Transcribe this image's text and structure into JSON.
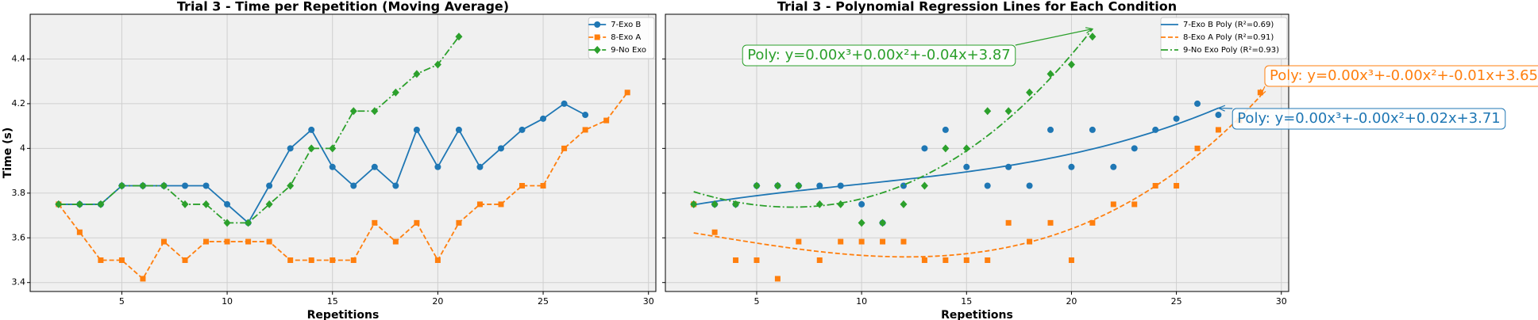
{
  "chart_data": [
    {
      "type": "line",
      "title": "Trial 3 - Time per Repetition (Moving Average)",
      "xlabel": "Repetitions",
      "ylabel": "Time (s)",
      "xlim": [
        0.65,
        30.35
      ],
      "ylim": [
        3.36,
        4.6
      ],
      "xticks": [
        5,
        10,
        15,
        20,
        25,
        30
      ],
      "yticks": [
        3.4,
        3.6,
        3.8,
        4.0,
        4.2,
        4.4
      ],
      "grid": true,
      "legend": "upper right",
      "series": [
        {
          "name": "7-Exo B",
          "color": "#1f77b4",
          "linestyle": "solid",
          "marker": "circle",
          "x": [
            2,
            3,
            4,
            5,
            6,
            7,
            8,
            9,
            10,
            11,
            12,
            13,
            14,
            15,
            16,
            17,
            18,
            19,
            20,
            21,
            22,
            23,
            24,
            25,
            26,
            27
          ],
          "values": [
            3.75,
            3.75,
            3.75,
            3.833,
            3.833,
            3.833,
            3.833,
            3.833,
            3.75,
            3.667,
            3.833,
            4.0,
            4.083,
            3.917,
            3.833,
            3.917,
            3.833,
            4.083,
            3.917,
            4.083,
            3.917,
            4.0,
            4.083,
            4.133,
            4.2,
            4.15
          ]
        },
        {
          "name": "8-Exo A",
          "color": "#ff7f0e",
          "linestyle": "dashed",
          "marker": "square",
          "x": [
            2,
            3,
            4,
            5,
            6,
            7,
            8,
            9,
            10,
            11,
            12,
            13,
            14,
            15,
            16,
            17,
            18,
            19,
            20,
            21,
            22,
            23,
            24,
            25,
            26,
            27,
            28,
            29
          ],
          "values": [
            3.75,
            3.625,
            3.5,
            3.5,
            3.417,
            3.583,
            3.5,
            3.583,
            3.583,
            3.583,
            3.583,
            3.5,
            3.5,
            3.5,
            3.5,
            3.667,
            3.583,
            3.667,
            3.5,
            3.667,
            3.75,
            3.75,
            3.833,
            3.833,
            4.0,
            4.083,
            4.125,
            4.25
          ]
        },
        {
          "name": "9-No Exo",
          "color": "#2ca02c",
          "linestyle": "dashdot",
          "marker": "diamond",
          "x": [
            2,
            3,
            4,
            5,
            6,
            7,
            8,
            9,
            10,
            11,
            12,
            13,
            14,
            15,
            16,
            17,
            18,
            19,
            20,
            21
          ],
          "values": [
            3.75,
            3.75,
            3.75,
            3.833,
            3.833,
            3.833,
            3.75,
            3.75,
            3.667,
            3.667,
            3.75,
            3.833,
            4.0,
            4.0,
            4.167,
            4.167,
            4.25,
            4.333,
            4.375,
            4.5
          ]
        }
      ]
    },
    {
      "type": "scatter",
      "title": "Trial 3 - Polynomial Regression Lines for Each Condition",
      "xlabel": "Repetitions",
      "xlim": [
        0.65,
        30.35
      ],
      "ylim": [
        3.36,
        4.6
      ],
      "xticks": [
        5,
        10,
        15,
        20,
        25,
        30
      ],
      "yticks": [
        3.4,
        3.6,
        3.8,
        4.0,
        4.2,
        4.4
      ],
      "show_ytick_labels": false,
      "grid": true,
      "legend": "upper right",
      "fit_degree": 3,
      "series": [
        {
          "name": "7-Exo B Poly (R²=0.69)",
          "color": "#1f77b4",
          "linestyle": "solid",
          "marker": "circle",
          "annotation": "Poly: y=0.00x³+-0.00x²+0.02x+3.71",
          "x": [
            2,
            3,
            4,
            5,
            6,
            7,
            8,
            9,
            10,
            11,
            12,
            13,
            14,
            15,
            16,
            17,
            18,
            19,
            20,
            21,
            22,
            23,
            24,
            25,
            26,
            27
          ],
          "values": [
            3.75,
            3.75,
            3.75,
            3.833,
            3.833,
            3.833,
            3.833,
            3.833,
            3.75,
            3.667,
            3.833,
            4.0,
            4.083,
            3.917,
            3.833,
            3.917,
            3.833,
            4.083,
            3.917,
            4.083,
            3.917,
            4.0,
            4.083,
            4.133,
            4.2,
            4.15
          ]
        },
        {
          "name": "8-Exo A Poly (R²=0.91)",
          "color": "#ff7f0e",
          "linestyle": "dashed",
          "marker": "square",
          "annotation": "Poly: y=0.00x³+-0.00x²+-0.01x+3.65",
          "x": [
            2,
            3,
            4,
            5,
            6,
            7,
            8,
            9,
            10,
            11,
            12,
            13,
            14,
            15,
            16,
            17,
            18,
            19,
            20,
            21,
            22,
            23,
            24,
            25,
            26,
            27,
            28,
            29
          ],
          "values": [
            3.75,
            3.625,
            3.5,
            3.5,
            3.417,
            3.583,
            3.5,
            3.583,
            3.583,
            3.583,
            3.583,
            3.5,
            3.5,
            3.5,
            3.5,
            3.667,
            3.583,
            3.667,
            3.5,
            3.667,
            3.75,
            3.75,
            3.833,
            3.833,
            4.0,
            4.083,
            4.125,
            4.25
          ]
        },
        {
          "name": "9-No Exo Poly (R²=0.93)",
          "color": "#2ca02c",
          "linestyle": "dashdot",
          "marker": "diamond",
          "annotation": "Poly: y=0.00x³+0.00x²+-0.04x+3.87",
          "x": [
            2,
            3,
            4,
            5,
            6,
            7,
            8,
            9,
            10,
            11,
            12,
            13,
            14,
            15,
            16,
            17,
            18,
            19,
            20,
            21
          ],
          "values": [
            3.75,
            3.75,
            3.75,
            3.833,
            3.833,
            3.833,
            3.75,
            3.75,
            3.667,
            3.667,
            3.75,
            3.833,
            4.0,
            4.0,
            4.167,
            4.167,
            4.25,
            4.333,
            4.375,
            4.5
          ]
        }
      ]
    }
  ]
}
